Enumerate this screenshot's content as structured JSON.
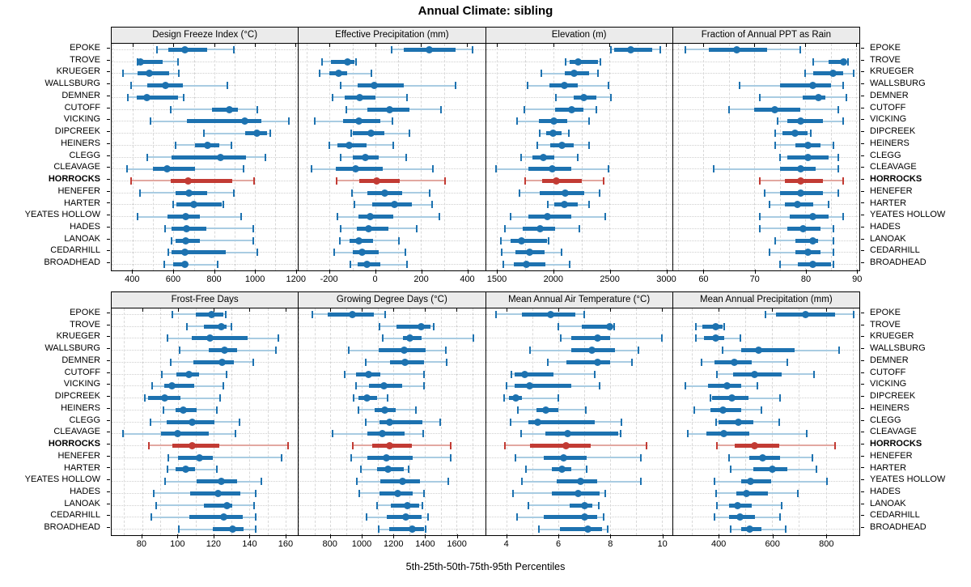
{
  "title": "Annual Climate: sibling",
  "footer": "5th-25th-50th-75th-95th Percentiles",
  "highlight_site": "HORROCKS",
  "percentiles": [
    5,
    25,
    50,
    75,
    95
  ],
  "sites": [
    "EPOKE",
    "TROVE",
    "KRUEGER",
    "WALLSBURG",
    "DEMNER",
    "CUTOFF",
    "VICKING",
    "DIPCREEK",
    "HEINERS",
    "CLEGG",
    "CLEAVAGE",
    "HORROCKS",
    "HENEFER",
    "HARTER",
    "YEATES HOLLOW",
    "HADES",
    "LANOAK",
    "CEDARHILL",
    "BROADHEAD"
  ],
  "colors": {
    "series_dark": "#1d72b0",
    "series_light": "#a9cce2",
    "highlight_dark": "#c23b34",
    "highlight_light": "#e2a8a1",
    "strip_bg": "#ebebeb",
    "panel_border": "#000000",
    "gridline": "#d8d8d8"
  },
  "chart_data": [
    {
      "type": "scatter",
      "subtype": "percentile-interval",
      "title": "Design Freeze Index (°C)",
      "panel_row": 0,
      "xlim": [
        296,
        1211
      ],
      "ticks": [
        400,
        600,
        800,
        1000,
        1200
      ],
      "grid_step": 100,
      "values": [
        [
          520,
          575,
          655,
          765,
          895
        ],
        [
          425,
          430,
          437,
          545,
          620
        ],
        [
          350,
          425,
          480,
          580,
          625
        ],
        [
          390,
          470,
          560,
          645,
          865
        ],
        [
          375,
          420,
          470,
          620,
          650
        ],
        [
          585,
          790,
          875,
          915,
          1010
        ],
        [
          485,
          665,
          950,
          1030,
          1165
        ],
        [
          750,
          950,
          1010,
          1060,
          1075
        ],
        [
          610,
          705,
          765,
          825,
          885
        ],
        [
          470,
          590,
          830,
          955,
          1050
        ],
        [
          370,
          500,
          570,
          705,
          945
        ],
        [
          390,
          585,
          670,
          890,
          995
        ],
        [
          435,
          610,
          675,
          765,
          895
        ],
        [
          600,
          615,
          700,
          835,
          845
        ],
        [
          425,
          570,
          660,
          730,
          930
        ],
        [
          560,
          590,
          665,
          760,
          990
        ],
        [
          590,
          610,
          660,
          730,
          990
        ],
        [
          575,
          590,
          655,
          855,
          1010
        ],
        [
          555,
          600,
          655,
          665,
          815
        ]
      ]
    },
    {
      "type": "scatter",
      "subtype": "percentile-interval",
      "title": "Effective Precipitation (mm)",
      "panel_row": 0,
      "xlim": [
        -334,
        479
      ],
      "ticks": [
        -200,
        0,
        200,
        400
      ],
      "grid_step": 100,
      "values": [
        [
          70,
          125,
          235,
          350,
          425
        ],
        [
          -233,
          -195,
          -122,
          -91,
          -84
        ],
        [
          -242,
          -202,
          -160,
          -122,
          -18
        ],
        [
          -151,
          -76,
          -4,
          125,
          349
        ],
        [
          -187,
          -133,
          -70,
          0,
          137
        ],
        [
          -128,
          -33,
          62,
          148,
          286
        ],
        [
          -263,
          -141,
          -72,
          22,
          73
        ],
        [
          -105,
          -97,
          -18,
          39,
          148
        ],
        [
          -202,
          -164,
          -114,
          -38,
          79
        ],
        [
          -151,
          -99,
          -45,
          13,
          134
        ],
        [
          -279,
          -171,
          -87,
          31,
          252
        ],
        [
          -168,
          -70,
          5,
          108,
          305
        ],
        [
          -102,
          -36,
          42,
          116,
          238
        ],
        [
          -91,
          -15,
          83,
          160,
          249
        ],
        [
          -164,
          -72,
          -24,
          79,
          280
        ],
        [
          -153,
          -79,
          -30,
          56,
          180
        ],
        [
          -156,
          -114,
          -72,
          -10,
          102
        ],
        [
          -179,
          -99,
          -56,
          16,
          131
        ],
        [
          -108,
          -76,
          -38,
          22,
          137
        ]
      ]
    },
    {
      "type": "scatter",
      "subtype": "percentile-interval",
      "title": "Elevation (m)",
      "panel_row": 0,
      "xlim": [
        1400,
        3057
      ],
      "ticks": [
        1500,
        2000,
        2500,
        3000
      ],
      "grid_step": 250,
      "values": [
        [
          2515,
          2540,
          2690,
          2880,
          2950
        ],
        [
          2110,
          2145,
          2220,
          2400,
          2415
        ],
        [
          1895,
          2100,
          2185,
          2320,
          2400
        ],
        [
          1770,
          1965,
          2100,
          2215,
          2490
        ],
        [
          2025,
          2180,
          2270,
          2380,
          2510
        ],
        [
          1745,
          2015,
          2160,
          2270,
          2380
        ],
        [
          1680,
          1870,
          2005,
          2120,
          2315
        ],
        [
          1880,
          1935,
          2000,
          2070,
          2140
        ],
        [
          1855,
          1975,
          2080,
          2180,
          2320
        ],
        [
          1715,
          1815,
          1910,
          2005,
          2215
        ],
        [
          1490,
          1780,
          1990,
          2160,
          2490
        ],
        [
          1750,
          1900,
          2025,
          2250,
          2450
        ],
        [
          1700,
          1880,
          2105,
          2275,
          2410
        ],
        [
          1950,
          2005,
          2100,
          2215,
          2315
        ],
        [
          1620,
          1780,
          1950,
          2160,
          2460
        ],
        [
          1570,
          1730,
          1880,
          2015,
          2230
        ],
        [
          1530,
          1620,
          1720,
          1945,
          1955
        ],
        [
          1540,
          1660,
          1790,
          1920,
          2070
        ],
        [
          1555,
          1650,
          1760,
          1930,
          2145
        ]
      ]
    },
    {
      "type": "scatter",
      "subtype": "percentile-interval",
      "title": "Fraction of Annual PPT as Rain",
      "panel_row": 0,
      "xlim": [
        54,
        90.6
      ],
      "ticks": [
        60,
        70,
        80,
        90
      ],
      "grid_step": 5,
      "values": [
        [
          56.5,
          61,
          66.5,
          72.5,
          79
        ],
        [
          81.5,
          84.5,
          87.5,
          88,
          88.3
        ],
        [
          80,
          81.5,
          85.5,
          87.5,
          89.5
        ],
        [
          67,
          75,
          81.5,
          85,
          87.5
        ],
        [
          71,
          79.5,
          82.5,
          84,
          88
        ],
        [
          65,
          70,
          74,
          79,
          86.5
        ],
        [
          74.5,
          76.5,
          79,
          83.5,
          87.5
        ],
        [
          74,
          75.5,
          78,
          80.5,
          81
        ],
        [
          74,
          78,
          80.5,
          83,
          85.5
        ],
        [
          75,
          76.5,
          80.5,
          84.5,
          86.5
        ],
        [
          62,
          75,
          79,
          82,
          86.5
        ],
        [
          71,
          76,
          79,
          83.5,
          87.5
        ],
        [
          72,
          75,
          79,
          83.5,
          86.5
        ],
        [
          73,
          76,
          78.5,
          81.5,
          84.5
        ],
        [
          71,
          77,
          81.5,
          84.5,
          87.5
        ],
        [
          71,
          76.5,
          79.5,
          83,
          85.5
        ],
        [
          74,
          78,
          81.5,
          82.5,
          85.5
        ],
        [
          73,
          78,
          80.5,
          83,
          85.5
        ],
        [
          75,
          78.5,
          81.5,
          85,
          85.5
        ]
      ]
    },
    {
      "type": "scatter",
      "subtype": "percentile-interval",
      "title": "Frost-Free Days",
      "panel_row": 1,
      "xlim": [
        63,
        167
      ],
      "ticks": [
        80,
        100,
        120,
        140,
        160
      ],
      "grid_step": 10,
      "values": [
        [
          97,
          110,
          119,
          125.5,
          126.5
        ],
        [
          105,
          114.5,
          124,
          127,
          130
        ],
        [
          94,
          107.5,
          118,
          139,
          156
        ],
        [
          101,
          117,
          126,
          133,
          154.5
        ],
        [
          96,
          108.5,
          124.5,
          131,
          142
        ],
        [
          91,
          99,
          106,
          112,
          127
        ],
        [
          85.5,
          92.5,
          96.5,
          109,
          125.5
        ],
        [
          81.5,
          83.5,
          92.5,
          101.5,
          123.5
        ],
        [
          92,
          98.5,
          103,
          110.5,
          121.5
        ],
        [
          84.5,
          93.5,
          108,
          120.5,
          134.5
        ],
        [
          69.5,
          90.5,
          100,
          117,
          132
        ],
        [
          84,
          97,
          108,
          123,
          161.5
        ],
        [
          94.5,
          100,
          112,
          119.5,
          158
        ],
        [
          94,
          98.5,
          104.5,
          109.5,
          121.5
        ],
        [
          93,
          110.5,
          124,
          133,
          146.5
        ],
        [
          86.5,
          107,
          122.5,
          135,
          143.5
        ],
        [
          88,
          114.5,
          127.5,
          130.5,
          142.5
        ],
        [
          85,
          106.5,
          125.5,
          136,
          143.5
        ],
        [
          100.5,
          119.5,
          130.5,
          136.5,
          143.5
        ]
      ]
    },
    {
      "type": "scatter",
      "subtype": "percentile-interval",
      "title": "Growing Degree Days (°C)",
      "panel_row": 1,
      "xlim": [
        600,
        1780
      ],
      "ticks": [
        800,
        1000,
        1200,
        1400,
        1600
      ],
      "grid_step": 100,
      "values": [
        [
          685,
          785,
          940,
          1075,
          1145
        ],
        [
          1110,
          1220,
          1375,
          1435,
          1455
        ],
        [
          1130,
          1260,
          1305,
          1380,
          1705
        ],
        [
          915,
          1105,
          1270,
          1405,
          1530
        ],
        [
          1025,
          1180,
          1275,
          1395,
          1535
        ],
        [
          890,
          965,
          1040,
          1115,
          1395
        ],
        [
          965,
          1045,
          1140,
          1255,
          1395
        ],
        [
          945,
          980,
          1030,
          1095,
          1165
        ],
        [
          980,
          1080,
          1145,
          1215,
          1340
        ],
        [
          1025,
          1110,
          1175,
          1385,
          1495
        ],
        [
          815,
          1035,
          1130,
          1270,
          1390
        ],
        [
          940,
          1065,
          1175,
          1315,
          1560
        ],
        [
          930,
          1035,
          1155,
          1320,
          1560
        ],
        [
          995,
          1095,
          1165,
          1265,
          1295
        ],
        [
          970,
          1115,
          1255,
          1365,
          1545
        ],
        [
          985,
          1110,
          1225,
          1320,
          1395
        ],
        [
          1095,
          1185,
          1290,
          1360,
          1385
        ],
        [
          1030,
          1155,
          1280,
          1380,
          1420
        ],
        [
          1105,
          1175,
          1320,
          1395,
          1405
        ]
      ]
    },
    {
      "type": "scatter",
      "subtype": "percentile-interval",
      "title": "Mean Annual Air Temperature (°C)",
      "panel_row": 1,
      "xlim": [
        3.2,
        10.4
      ],
      "ticks": [
        4,
        6,
        8,
        10
      ],
      "grid_step": 1,
      "values": [
        [
          3.6,
          4.6,
          5.7,
          6.65,
          7.0
        ],
        [
          6.0,
          6.9,
          8.0,
          8.1,
          8.15
        ],
        [
          6.1,
          6.5,
          7.5,
          8.0,
          10.0
        ],
        [
          4.9,
          6.5,
          7.3,
          8.2,
          9.1
        ],
        [
          5.6,
          6.3,
          7.5,
          8.0,
          8.85
        ],
        [
          4.2,
          4.3,
          4.7,
          5.8,
          7.4
        ],
        [
          4.0,
          4.3,
          4.9,
          6.5,
          7.6
        ],
        [
          3.9,
          4.1,
          4.35,
          4.6,
          6.0
        ],
        [
          4.45,
          5.15,
          5.5,
          6.0,
          7.05
        ],
        [
          4.15,
          4.85,
          5.2,
          7.4,
          8.45
        ],
        [
          4.55,
          5.5,
          6.35,
          8.3,
          8.4
        ],
        [
          3.95,
          4.9,
          6.3,
          7.25,
          9.4
        ],
        [
          4.35,
          5.45,
          6.2,
          7.1,
          9.2
        ],
        [
          4.75,
          5.75,
          6.15,
          6.5,
          7.1
        ],
        [
          4.6,
          5.95,
          6.85,
          7.5,
          9.2
        ],
        [
          4.25,
          5.75,
          6.75,
          7.6,
          7.8
        ],
        [
          4.85,
          6.45,
          7.0,
          7.3,
          7.55
        ],
        [
          4.4,
          5.45,
          7.0,
          7.5,
          7.75
        ],
        [
          5.25,
          6.05,
          7.15,
          7.7,
          7.9
        ]
      ]
    },
    {
      "type": "scatter",
      "subtype": "percentile-interval",
      "title": "Mean Annual Precipitation (mm)",
      "panel_row": 1,
      "xlim": [
        230,
        925
      ],
      "ticks": [
        400,
        600,
        800
      ],
      "grid_step": 100,
      "values": [
        [
          575,
          615,
          725,
          835,
          905
        ],
        [
          315,
          340,
          390,
          415,
          420
        ],
        [
          315,
          345,
          390,
          420,
          480
        ],
        [
          415,
          485,
          550,
          685,
          850
        ],
        [
          335,
          385,
          460,
          525,
          655
        ],
        [
          395,
          455,
          535,
          635,
          755
        ],
        [
          275,
          360,
          430,
          485,
          545
        ],
        [
          370,
          375,
          450,
          510,
          630
        ],
        [
          310,
          370,
          415,
          485,
          560
        ],
        [
          390,
          400,
          475,
          530,
          625
        ],
        [
          285,
          355,
          420,
          515,
          730
        ],
        [
          395,
          460,
          535,
          625,
          835
        ],
        [
          440,
          515,
          565,
          630,
          750
        ],
        [
          445,
          530,
          600,
          655,
          765
        ],
        [
          385,
          485,
          520,
          595,
          805
        ],
        [
          390,
          465,
          505,
          585,
          695
        ],
        [
          395,
          440,
          470,
          525,
          635
        ],
        [
          385,
          440,
          480,
          535,
          630
        ],
        [
          445,
          485,
          515,
          560,
          650
        ]
      ]
    }
  ]
}
